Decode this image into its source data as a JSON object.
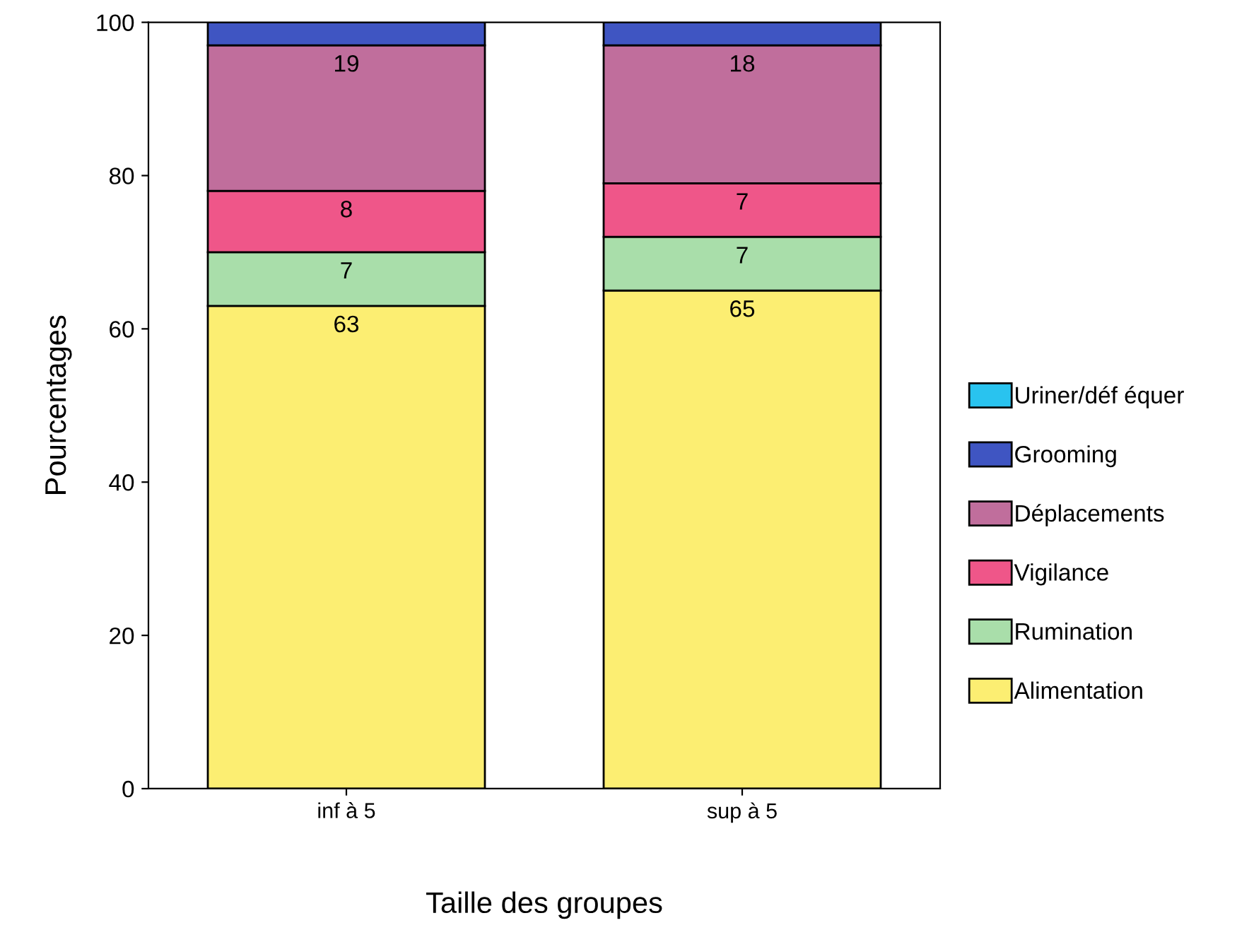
{
  "chart_data": {
    "type": "bar",
    "stacked": true,
    "xlabel": "Taille des groupes",
    "ylabel": "Pourcentages",
    "categories": [
      "inf à 5",
      "sup à 5"
    ],
    "series": [
      {
        "name": "Alimentation",
        "color": "#fcee72",
        "values": [
          63,
          65
        ],
        "value_labels": [
          "63",
          "65"
        ]
      },
      {
        "name": "Rumination",
        "color": "#a9deaa",
        "values": [
          7,
          7
        ],
        "value_labels": [
          "7",
          "7"
        ]
      },
      {
        "name": "Vigilance",
        "color": "#ef5689",
        "values": [
          8,
          7
        ],
        "value_labels": [
          "8",
          "7"
        ]
      },
      {
        "name": "Déplacements",
        "color": "#c06e9c",
        "values": [
          19,
          18
        ],
        "value_labels": [
          "19",
          "18"
        ]
      },
      {
        "name": "Grooming",
        "color": "#3f55c2",
        "values": [
          3,
          3
        ],
        "value_labels": [
          null,
          null
        ]
      },
      {
        "name": "Uriner/déf équer",
        "color": "#29c3ef",
        "values": [
          0,
          0
        ],
        "value_labels": [
          null,
          null
        ]
      }
    ],
    "ylim": [
      0,
      100
    ],
    "yticks": [
      0,
      20,
      40,
      60,
      80,
      100
    ],
    "grid": false,
    "legend": "right"
  }
}
